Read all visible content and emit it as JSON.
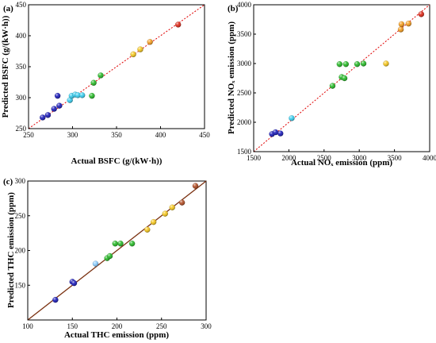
{
  "chart_data": [
    {
      "type": "scatter",
      "panel_label": "(a)",
      "xlabel": "Actual BSFC (g/(kW·h))",
      "ylabel": "Predicted BSFC (g/(kW·h))",
      "xlim": [
        250,
        450
      ],
      "ylim": [
        250,
        450
      ],
      "xticks": [
        250,
        300,
        350,
        400,
        450
      ],
      "yticks": [
        250,
        300,
        350,
        400,
        450
      ],
      "reference_line": {
        "style": "dotted",
        "color": "#e00000"
      },
      "points": [
        {
          "x": 266,
          "y": 268,
          "color": "#1515b8"
        },
        {
          "x": 272,
          "y": 272,
          "color": "#1515b8"
        },
        {
          "x": 279,
          "y": 282,
          "color": "#1515b8"
        },
        {
          "x": 285,
          "y": 287,
          "color": "#1515b8"
        },
        {
          "x": 283,
          "y": 303,
          "color": "#1515b8"
        },
        {
          "x": 297,
          "y": 296,
          "color": "#33ccee"
        },
        {
          "x": 299,
          "y": 303,
          "color": "#33ccee"
        },
        {
          "x": 303,
          "y": 305,
          "color": "#33ccee"
        },
        {
          "x": 306,
          "y": 304,
          "color": "#33ccee"
        },
        {
          "x": 311,
          "y": 304,
          "color": "#33ccee"
        },
        {
          "x": 322,
          "y": 303,
          "color": "#22b822"
        },
        {
          "x": 324,
          "y": 324,
          "color": "#22b822"
        },
        {
          "x": 332,
          "y": 336,
          "color": "#22b822"
        },
        {
          "x": 369,
          "y": 370,
          "color": "#f5c518"
        },
        {
          "x": 377,
          "y": 378,
          "color": "#f5c518"
        },
        {
          "x": 388,
          "y": 390,
          "color": "#f59a18"
        },
        {
          "x": 420,
          "y": 418,
          "color": "#dd2211"
        }
      ]
    },
    {
      "type": "scatter",
      "panel_label": "(b)",
      "xlabel": "Actual NOₓ emission (ppm)",
      "ylabel": "Predicted NOₓ emission (ppm)",
      "xlim": [
        1500,
        4000
      ],
      "ylim": [
        1500,
        4000
      ],
      "xticks": [
        1500,
        2000,
        2500,
        3000,
        3500,
        4000
      ],
      "yticks": [
        1500,
        2000,
        2500,
        3000,
        3500,
        4000
      ],
      "reference_line": {
        "style": "dotted",
        "color": "#e00000"
      },
      "points": [
        {
          "x": 1760,
          "y": 1800,
          "color": "#1515b8"
        },
        {
          "x": 1810,
          "y": 1830,
          "color": "#1515b8"
        },
        {
          "x": 1880,
          "y": 1810,
          "color": "#1515b8"
        },
        {
          "x": 2040,
          "y": 2070,
          "color": "#33ccee"
        },
        {
          "x": 2620,
          "y": 2620,
          "color": "#22b822"
        },
        {
          "x": 2720,
          "y": 2990,
          "color": "#22b822"
        },
        {
          "x": 2750,
          "y": 2770,
          "color": "#22b822"
        },
        {
          "x": 2790,
          "y": 2750,
          "color": "#22b822"
        },
        {
          "x": 2810,
          "y": 2990,
          "color": "#22b822"
        },
        {
          "x": 2970,
          "y": 2990,
          "color": "#22b822"
        },
        {
          "x": 3060,
          "y": 3000,
          "color": "#22b822"
        },
        {
          "x": 3380,
          "y": 3000,
          "color": "#f5c518"
        },
        {
          "x": 3590,
          "y": 3580,
          "color": "#f59a18"
        },
        {
          "x": 3600,
          "y": 3670,
          "color": "#f59a18"
        },
        {
          "x": 3700,
          "y": 3680,
          "color": "#f59a18"
        },
        {
          "x": 3880,
          "y": 3840,
          "color": "#dd2211"
        }
      ]
    },
    {
      "type": "scatter",
      "panel_label": "(c)",
      "xlabel": "Actual THC emission (ppm)",
      "ylabel": "Predicted THC emission (ppm)",
      "xlim": [
        100,
        300
      ],
      "ylim": [
        100,
        300
      ],
      "xticks": [
        100,
        150,
        200,
        250,
        300
      ],
      "yticks": [
        150,
        200,
        250,
        300
      ],
      "reference_line": {
        "style": "solid",
        "color": "#7a3010"
      },
      "points": [
        {
          "x": 131,
          "y": 129,
          "color": "#1515b8"
        },
        {
          "x": 150,
          "y": 155,
          "color": "#1515b8"
        },
        {
          "x": 152,
          "y": 153,
          "color": "#1515b8"
        },
        {
          "x": 176,
          "y": 181,
          "color": "#88ccff"
        },
        {
          "x": 189,
          "y": 189,
          "color": "#22b822"
        },
        {
          "x": 192,
          "y": 192,
          "color": "#22b822"
        },
        {
          "x": 198,
          "y": 210,
          "color": "#22b822"
        },
        {
          "x": 204,
          "y": 210,
          "color": "#22b822"
        },
        {
          "x": 217,
          "y": 210,
          "color": "#22b822"
        },
        {
          "x": 234,
          "y": 230,
          "color": "#f5c518"
        },
        {
          "x": 241,
          "y": 241,
          "color": "#f5c518"
        },
        {
          "x": 254,
          "y": 253,
          "color": "#f5c518"
        },
        {
          "x": 262,
          "y": 262,
          "color": "#f5c518"
        },
        {
          "x": 273,
          "y": 269,
          "color": "#b04a20"
        },
        {
          "x": 288,
          "y": 293,
          "color": "#b04a20"
        }
      ]
    }
  ]
}
